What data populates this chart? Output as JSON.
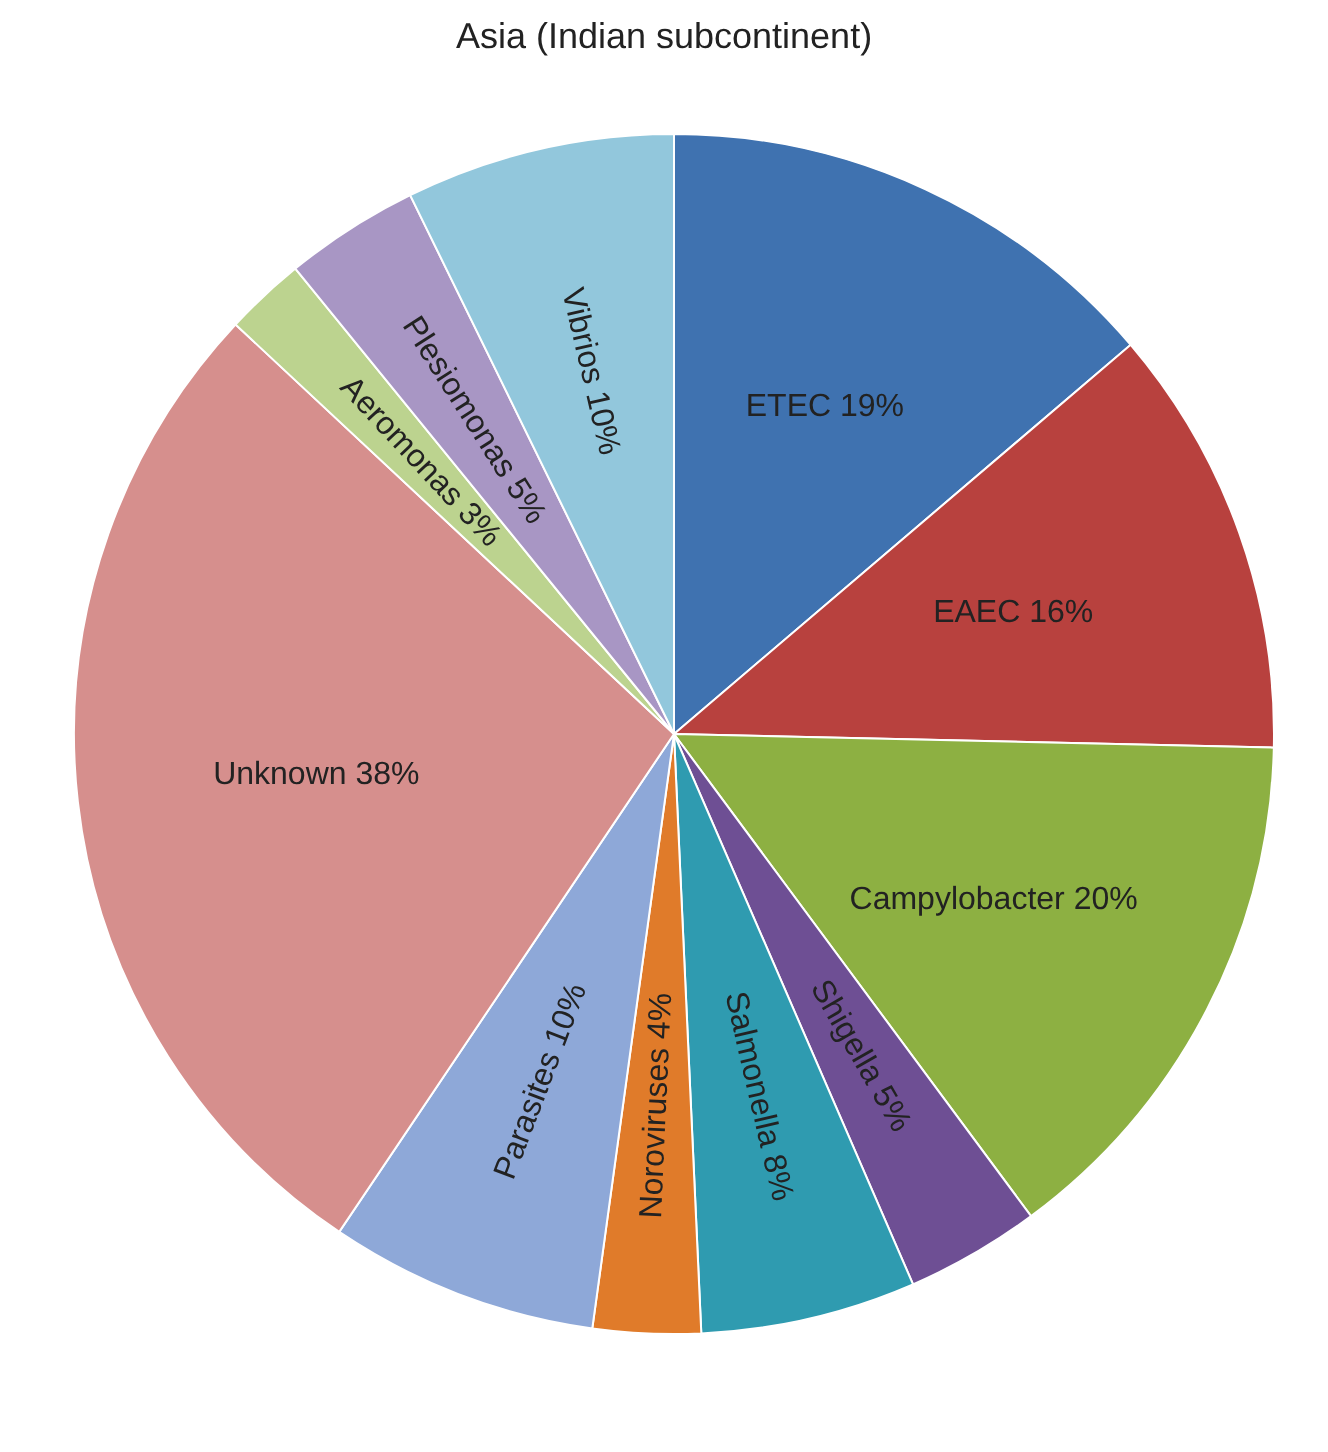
{
  "chart_data": {
    "type": "pie",
    "title": "Asia (Indian subcontinent)",
    "categories": [
      "ETEC",
      "EAEC",
      "Campylobacter",
      "Shigella",
      "Salmonella",
      "Noroviruses",
      "Parasites",
      "Unknown",
      "Aeromonas",
      "Plesiomonas",
      "Vibrios"
    ],
    "values": [
      19,
      16,
      20,
      5,
      8,
      4,
      10,
      38,
      3,
      5,
      10
    ],
    "value_labels": [
      "19%",
      "16%",
      "20%",
      "5%",
      "8%",
      "4%",
      "10%",
      "38%",
      "3%",
      "5%",
      "10%"
    ],
    "colors": [
      "#3f72b0",
      "#b8413e",
      "#8db042",
      "#6e4f94",
      "#2f9bb0",
      "#e07b2a",
      "#8ea8d8",
      "#d68f8d",
      "#bcd38f",
      "#a896c4",
      "#92c7dc"
    ],
    "legend": false
  }
}
